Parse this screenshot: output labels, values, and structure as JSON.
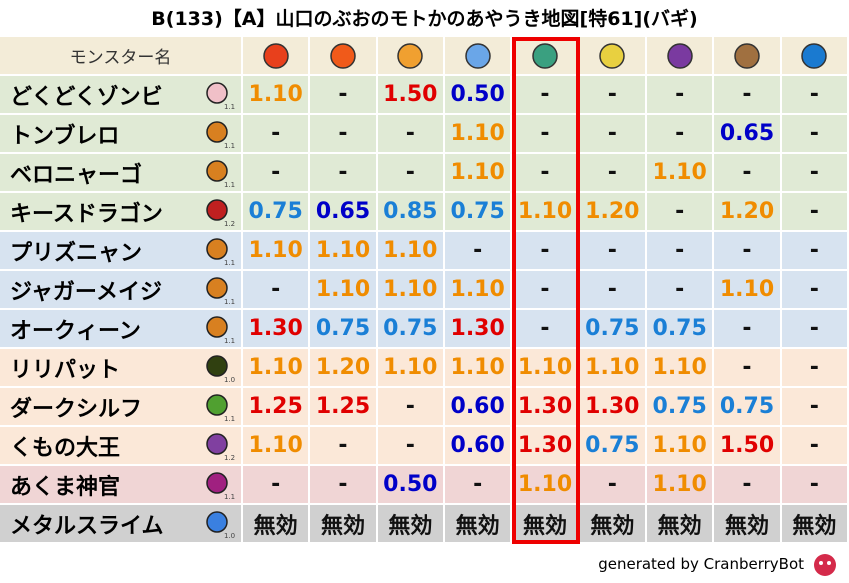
{
  "title": "B(133)【A】山口のぶおのモトかのあやうき地図[特61](バギ)",
  "header": {
    "name_column": "モンスター名",
    "bg": "#f3ecd8"
  },
  "highlight_column": 4,
  "value_colors": {
    "1.10": "#f08c00",
    "1.20": "#f08c00",
    "1.25": "#e00000",
    "1.30": "#e00000",
    "1.50": "#e00000",
    "0.50": "#0000c8",
    "0.60": "#0000c8",
    "0.65": "#0000c8",
    "0.75": "#1a7fd6",
    "0.85": "#1a7fd6"
  },
  "rows": [
    {
      "name": "どくどくゾンビ",
      "level": "1.1",
      "bg": "#e0ead5",
      "cells": [
        "1.10",
        "-",
        "1.50",
        "0.50",
        "-",
        "-",
        "-",
        "-",
        "-"
      ]
    },
    {
      "name": "トンブレロ",
      "level": "1.1",
      "bg": "#e0ead5",
      "cells": [
        "-",
        "-",
        "-",
        "1.10",
        "-",
        "-",
        "-",
        "0.65",
        "-"
      ]
    },
    {
      "name": "ベロニャーゴ",
      "level": "1.1",
      "bg": "#e0ead5",
      "cells": [
        "-",
        "-",
        "-",
        "1.10",
        "-",
        "-",
        "1.10",
        "-",
        "-"
      ]
    },
    {
      "name": "キースドラゴン",
      "level": "1.2",
      "bg": "#e0ead5",
      "cells": [
        "0.75",
        "0.65",
        "0.85",
        "0.75",
        "1.10",
        "1.20",
        "-",
        "1.20",
        "-"
      ]
    },
    {
      "name": "プリズニャン",
      "level": "1.1",
      "bg": "#d7e3f0",
      "cells": [
        "1.10",
        "1.10",
        "1.10",
        "-",
        "-",
        "-",
        "-",
        "-",
        "-"
      ]
    },
    {
      "name": "ジャガーメイジ",
      "level": "1.1",
      "bg": "#d7e3f0",
      "cells": [
        "-",
        "1.10",
        "1.10",
        "1.10",
        "-",
        "-",
        "-",
        "1.10",
        "-"
      ]
    },
    {
      "name": "オークィーン",
      "level": "1.1",
      "bg": "#d7e3f0",
      "cells": [
        "1.30",
        "0.75",
        "0.75",
        "1.30",
        "-",
        "0.75",
        "0.75",
        "-",
        "-"
      ]
    },
    {
      "name": "リリパット",
      "level": "1.0",
      "bg": "#fbe8d8",
      "cells": [
        "1.10",
        "1.20",
        "1.10",
        "1.10",
        "1.10",
        "1.10",
        "1.10",
        "-",
        "-"
      ]
    },
    {
      "name": "ダークシルフ",
      "level": "1.1",
      "bg": "#fbe8d8",
      "cells": [
        "1.25",
        "1.25",
        "-",
        "0.60",
        "1.30",
        "1.30",
        "0.75",
        "0.75",
        "-"
      ]
    },
    {
      "name": "くもの大王",
      "level": "1.2",
      "bg": "#fbe8d8",
      "cells": [
        "1.10",
        "-",
        "-",
        "0.60",
        "1.30",
        "0.75",
        "1.10",
        "1.50",
        "-"
      ]
    },
    {
      "name": "あくま神官",
      "level": "1.1",
      "bg": "#f0d5d5",
      "cells": [
        "-",
        "-",
        "0.50",
        "-",
        "1.10",
        "-",
        "1.10",
        "-",
        "-"
      ]
    },
    {
      "name": "メタルスライム",
      "level": "1.0",
      "bg": "#d0d0d0",
      "cells": [
        "無効",
        "無効",
        "無効",
        "無効",
        "無効",
        "無効",
        "無効",
        "無効",
        "無効"
      ]
    }
  ],
  "footer": "generated by CranberryBot"
}
